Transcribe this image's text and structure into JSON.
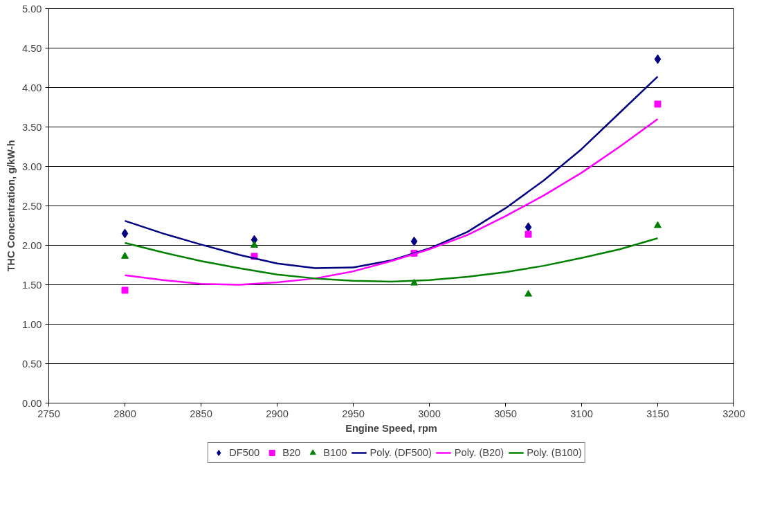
{
  "chart_data": {
    "type": "scatter",
    "xlabel": "Engine Speed, rpm",
    "ylabel": "THC Concentration, g/kW-h",
    "x": [
      2800,
      2885,
      2990,
      3065,
      3150
    ],
    "xlim": [
      2750,
      3200
    ],
    "xticks": [
      2750,
      2800,
      2850,
      2900,
      2950,
      3000,
      3050,
      3100,
      3150,
      3200
    ],
    "ylim": [
      0,
      5
    ],
    "yticks": [
      {
        "value": 0,
        "label": "0.00"
      },
      {
        "value": 0.5,
        "label": "0.50"
      },
      {
        "value": 1,
        "label": "1.00"
      },
      {
        "value": 1.5,
        "label": "1.50"
      },
      {
        "value": 2,
        "label": "2.00"
      },
      {
        "value": 2.5,
        "label": "2.50"
      },
      {
        "value": 3,
        "label": "3.00"
      },
      {
        "value": 3.5,
        "label": "3.50"
      },
      {
        "value": 4,
        "label": "4.00"
      },
      {
        "value": 4.5,
        "label": "4.50"
      },
      {
        "value": 5,
        "label": "5.00"
      }
    ],
    "grid": "y",
    "legend": "bottom",
    "series": [
      {
        "name": "DF500",
        "color": "#000080",
        "marker": "diamond",
        "values": [
          2.15,
          2.07,
          2.05,
          2.23,
          4.36
        ]
      },
      {
        "name": "B20",
        "color": "#ff00ff",
        "marker": "square",
        "values": [
          1.43,
          1.86,
          1.9,
          2.14,
          3.79
        ]
      },
      {
        "name": "B100",
        "color": "#008000",
        "marker": "triangle",
        "values": [
          1.86,
          2.0,
          1.52,
          1.38,
          2.25
        ]
      },
      {
        "name": "Poly. (DF500)",
        "type": "line",
        "color": "#000080",
        "marker": "none",
        "x": [
          2800,
          2825,
          2850,
          2875,
          2900,
          2925,
          2950,
          2975,
          3000,
          3025,
          3050,
          3075,
          3100,
          3125,
          3150
        ],
        "values": [
          2.31,
          2.15,
          2.01,
          1.88,
          1.77,
          1.71,
          1.72,
          1.81,
          1.96,
          2.17,
          2.47,
          2.82,
          3.22,
          3.68,
          4.14
        ]
      },
      {
        "name": "Poly. (B20)",
        "type": "line",
        "color": "#ff00ff",
        "marker": "none",
        "x": [
          2800,
          2825,
          2850,
          2875,
          2900,
          2925,
          2950,
          2975,
          3000,
          3025,
          3050,
          3075,
          3100,
          3125,
          3150
        ],
        "values": [
          1.62,
          1.56,
          1.51,
          1.5,
          1.53,
          1.58,
          1.67,
          1.8,
          1.95,
          2.13,
          2.37,
          2.63,
          2.92,
          3.25,
          3.6
        ]
      },
      {
        "name": "Poly. (B100)",
        "type": "line",
        "color": "#008000",
        "marker": "none",
        "x": [
          2800,
          2825,
          2850,
          2875,
          2900,
          2925,
          2950,
          2975,
          3000,
          3025,
          3050,
          3075,
          3100,
          3125,
          3150
        ],
        "values": [
          2.03,
          1.91,
          1.8,
          1.71,
          1.63,
          1.58,
          1.55,
          1.54,
          1.56,
          1.6,
          1.66,
          1.74,
          1.84,
          1.95,
          2.09
        ]
      }
    ]
  }
}
